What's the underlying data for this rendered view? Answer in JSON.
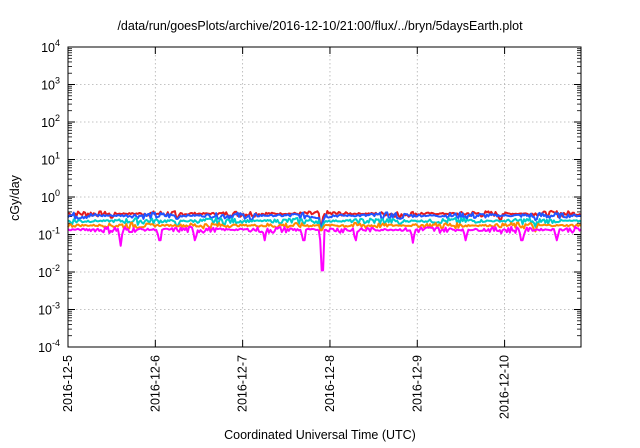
{
  "chart_data": {
    "type": "line",
    "title": "/data/run/goesPlots/archive/2016-12-10/21:00/flux/../bryn/5daysEarth.plot",
    "xlabel": "Coordinated Universal Time (UTC)",
    "ylabel": "cGy/day",
    "y_scale": "log",
    "ylim": [
      0.0001,
      10000
    ],
    "y_ticks": [
      {
        "base": "10",
        "exp": "-4"
      },
      {
        "base": "10",
        "exp": "-3"
      },
      {
        "base": "10",
        "exp": "-2"
      },
      {
        "base": "10",
        "exp": "-1"
      },
      {
        "base": "10",
        "exp": "0"
      },
      {
        "base": "10",
        "exp": "1"
      },
      {
        "base": "10",
        "exp": "2"
      },
      {
        "base": "10",
        "exp": "3"
      },
      {
        "base": "10",
        "exp": "4"
      }
    ],
    "xlim": [
      "2016-12-05",
      "2016-12-10T21:00"
    ],
    "x_ticks": [
      "2016-12-5",
      "2016-12-6",
      "2016-12-7",
      "2016-12-8",
      "2016-12-9",
      "2016-12-10"
    ],
    "grid": true,
    "series": [
      {
        "color": "#e41a1c",
        "baseline": 0.36,
        "noise": 0.07,
        "dips": [
          [
            0.5,
            0.28
          ],
          [
            1.25,
            0.28
          ],
          [
            2.9,
            0.18
          ],
          [
            3.8,
            0.28
          ],
          [
            4.95,
            0.25
          ]
        ]
      },
      {
        "color": "#2255ff",
        "baseline": 0.32,
        "noise": 0.07,
        "dips": [
          [
            1.25,
            0.26
          ],
          [
            2.1,
            0.24
          ],
          [
            2.9,
            0.16
          ],
          [
            3.8,
            0.26
          ],
          [
            5.35,
            0.24
          ]
        ]
      },
      {
        "color": "#00cccc",
        "baseline": 0.23,
        "noise": 0.05,
        "dips": [
          [
            1.25,
            0.17
          ],
          [
            2.9,
            0.13
          ],
          [
            3.8,
            0.18
          ],
          [
            5.35,
            0.16
          ]
        ]
      },
      {
        "color": "#ff8800",
        "baseline": 0.175,
        "noise": 0.035,
        "dips": [
          [
            2.9,
            0.13
          ],
          [
            5.35,
            0.12
          ]
        ]
      },
      {
        "color": "#ff00ff",
        "baseline": 0.135,
        "noise": 0.03,
        "dips": [
          [
            0.6,
            0.05
          ],
          [
            1.05,
            0.07
          ],
          [
            1.45,
            0.07
          ],
          [
            2.25,
            0.07
          ],
          [
            2.7,
            0.07
          ],
          [
            2.91,
            0.011
          ],
          [
            3.3,
            0.07
          ],
          [
            3.95,
            0.06
          ],
          [
            4.55,
            0.07
          ],
          [
            5.2,
            0.07
          ],
          [
            5.6,
            0.07
          ]
        ]
      }
    ]
  }
}
